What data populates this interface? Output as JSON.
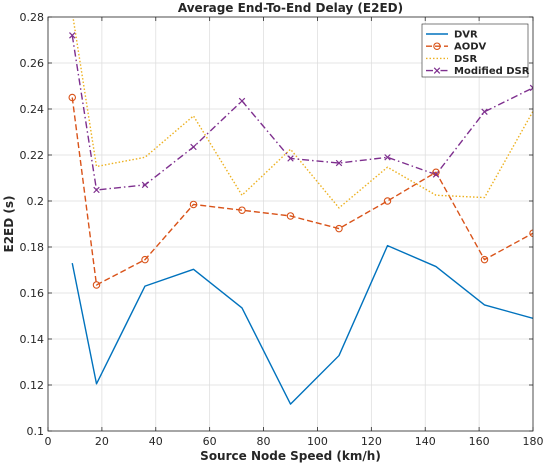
{
  "chart_data": {
    "type": "line",
    "title": "Average End-To-End Delay (E2ED)",
    "xlabel": "Source Node Speed (km/h)",
    "ylabel": "E2ED (s)",
    "xlim": [
      0,
      180
    ],
    "ylim": [
      0.1,
      0.28
    ],
    "xticks": [
      0,
      20,
      40,
      60,
      80,
      100,
      120,
      140,
      160,
      180
    ],
    "yticks": [
      0.1,
      0.12,
      0.14,
      0.16,
      0.18,
      0.2,
      0.22,
      0.24,
      0.26,
      0.28
    ],
    "grid": true,
    "legend_position": "top-right",
    "x": [
      9,
      18,
      36,
      54,
      72,
      90,
      108,
      126,
      144,
      162,
      180
    ],
    "series": [
      {
        "name": "DVR",
        "color": "#0072bd",
        "dash": "solid",
        "marker": "none",
        "values": [
          0.173,
          0.1205,
          0.163,
          0.1703,
          0.1535,
          0.1117,
          0.1328,
          0.1806,
          0.1715,
          0.1548,
          0.149
        ]
      },
      {
        "name": "AODV",
        "color": "#d95319",
        "dash": "dashed",
        "marker": "circle",
        "values": [
          0.245,
          0.1635,
          0.1745,
          0.1985,
          0.196,
          0.1935,
          0.188,
          0.2,
          0.2125,
          0.1745,
          0.186
        ]
      },
      {
        "name": "DSR",
        "color": "#edb120",
        "dash": "dotted",
        "marker": "none",
        "values": [
          0.282,
          0.215,
          0.219,
          0.237,
          0.2025,
          0.2225,
          0.197,
          0.2147,
          0.2025,
          0.2015,
          0.239
        ]
      },
      {
        "name": "Modified DSR",
        "color": "#7e2f8e",
        "dash": "dashdot",
        "marker": "x",
        "values": [
          0.272,
          0.2048,
          0.207,
          0.2235,
          0.2435,
          0.2185,
          0.2165,
          0.219,
          0.2115,
          0.2388,
          0.2492
        ]
      }
    ]
  }
}
